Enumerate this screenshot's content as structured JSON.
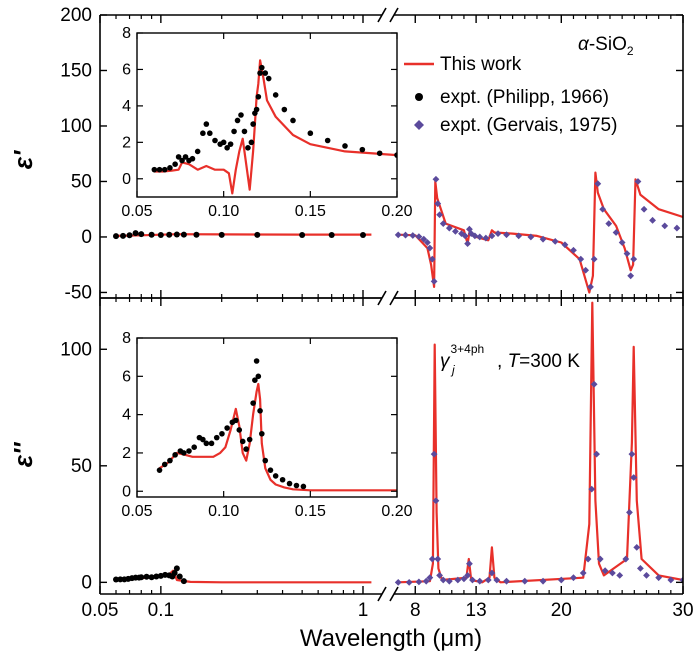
{
  "chart_data": {
    "type": "line",
    "xlabel": "Wavelength (μm)",
    "x_scale": "log (0.05–1.2 μm), then linear 6.5–30 μm after axis break",
    "legend": {
      "placement": "top-right",
      "entries": [
        "This work",
        "expt. (Philipp, 1966)",
        "expt. (Gervais, 1975)"
      ]
    },
    "colors": {
      "this_work": "#e8302a",
      "philipp": "#000000",
      "gervais": "#5b4a9c"
    },
    "annotation_material": "α-SiO",
    "annotation_material_sub": "2",
    "annotation_gamma": "γ",
    "annotation_gamma_sub": "j",
    "annotation_gamma_sup": "3+4ph",
    "annotation_gamma_rest": ", ",
    "annotation_T": "T",
    "annotation_T_val": "=300 K",
    "x_tick_labels": [
      "0.05",
      "0.1",
      "1",
      "8",
      "13",
      "20",
      "30"
    ],
    "panels": [
      {
        "name": "real",
        "ylabel": "ε'",
        "ylim": [
          -55,
          200
        ],
        "y_ticks": [
          -50,
          0,
          50,
          100,
          150,
          200
        ],
        "series": [
          {
            "name": "This work",
            "style": "line",
            "x": [
              0.06,
              0.08,
              0.1,
              0.12,
              0.2,
              0.5,
              1.1,
              6.6,
              8.0,
              9.0,
              9.3,
              9.55,
              9.65,
              9.8,
              10.5,
              12.0,
              12.3,
              12.45,
              12.55,
              13.0,
              14.0,
              14.3,
              14.5,
              16,
              18,
              20,
              21.5,
              22.3,
              22.6,
              22.8,
              23.0,
              23.5,
              24.5,
              25.2,
              25.7,
              25.9,
              26.1,
              26.5,
              28,
              30
            ],
            "y": [
              1,
              1.5,
              2,
              2.5,
              2.3,
              2.1,
              2.1,
              2.0,
              1.5,
              -10,
              -25,
              -45,
              50,
              35,
              12,
              6,
              -6,
              4,
              2,
              0,
              -3,
              6,
              4,
              3,
              1,
              -5,
              -20,
              -50,
              -35,
              58,
              40,
              25,
              10,
              -10,
              -30,
              -25,
              52,
              38,
              25,
              18
            ]
          },
          {
            "name": "expt. (Philipp, 1966)",
            "style": "dots",
            "x": [
              0.06,
              0.065,
              0.07,
              0.075,
              0.08,
              0.09,
              0.1,
              0.11,
              0.12,
              0.13,
              0.15,
              0.2,
              0.3,
              0.5,
              0.7,
              1.0
            ],
            "y": [
              0.8,
              1.0,
              1.5,
              3.5,
              2.5,
              2.0,
              1.8,
              2.0,
              2.2,
              2.1,
              2.0,
              1.9,
              1.9,
              1.8,
              1.8,
              1.8
            ]
          },
          {
            "name": "expt. (Gervais, 1975)",
            "style": "diamonds",
            "x": [
              6.6,
              7.2,
              7.8,
              8.3,
              8.7,
              9.0,
              9.2,
              9.4,
              9.55,
              9.7,
              9.85,
              10.0,
              10.3,
              10.8,
              11.3,
              11.8,
              12.1,
              12.3,
              12.45,
              12.6,
              12.9,
              13.3,
              13.8,
              14.3,
              14.8,
              15.5,
              16.5,
              17.5,
              18.5,
              19.5,
              20.3,
              21.0,
              21.6,
              22.0,
              22.4,
              22.7,
              23.0,
              23.4,
              23.9,
              24.5,
              25.0,
              25.4,
              25.7,
              25.95,
              26.3,
              26.8,
              27.5,
              28.5,
              29.5
            ],
            "y": [
              1.9,
              1.7,
              1.3,
              0.3,
              -2,
              -5,
              -10,
              -20,
              -40,
              52,
              30,
              20,
              12,
              8,
              5,
              3,
              1,
              -6,
              7,
              3,
              1,
              0,
              -1,
              1,
              3,
              2,
              1,
              0,
              -2,
              -4,
              -7,
              -12,
              -20,
              -30,
              -45,
              -20,
              48,
              25,
              12,
              4,
              -5,
              -15,
              -35,
              -20,
              50,
              25,
              15,
              10,
              8
            ]
          }
        ],
        "inset": {
          "xlim": [
            0.05,
            0.2
          ],
          "ylim": [
            -1,
            8
          ],
          "x_ticks": [
            0.05,
            0.1,
            0.15,
            0.2
          ],
          "y_ticks": [
            0,
            2,
            4,
            6,
            8
          ],
          "series": [
            {
              "name": "This work",
              "style": "line",
              "x": [
                0.06,
                0.065,
                0.07,
                0.074,
                0.076,
                0.08,
                0.085,
                0.09,
                0.095,
                0.1,
                0.103,
                0.105,
                0.107,
                0.109,
                0.111,
                0.113,
                0.115,
                0.117,
                0.118,
                0.119,
                0.12,
                0.121,
                0.123,
                0.125,
                0.13,
                0.14,
                0.15,
                0.17,
                0.2
              ],
              "y": [
                0.4,
                0.4,
                0.45,
                0.5,
                0.9,
                0.8,
                0.5,
                0.7,
                0.5,
                0.5,
                0.3,
                -0.8,
                0.5,
                1.5,
                2.2,
                0.8,
                -0.6,
                1.5,
                3,
                4.5,
                5.2,
                6.5,
                5.5,
                4.3,
                3.4,
                2.4,
                1.9,
                1.5,
                1.3
              ]
            },
            {
              "name": "expt. (Philipp, 1966)",
              "style": "dots",
              "x": [
                0.06,
                0.063,
                0.066,
                0.069,
                0.072,
                0.074,
                0.076,
                0.078,
                0.08,
                0.082,
                0.085,
                0.088,
                0.09,
                0.092,
                0.095,
                0.098,
                0.1,
                0.102,
                0.104,
                0.106,
                0.108,
                0.11,
                0.112,
                0.114,
                0.116,
                0.117,
                0.118,
                0.119,
                0.12,
                0.121,
                0.122,
                0.124,
                0.126,
                0.13,
                0.135,
                0.14,
                0.15,
                0.16,
                0.17,
                0.18,
                0.19,
                0.2
              ],
              "y": [
                0.5,
                0.5,
                0.5,
                0.6,
                0.8,
                1.2,
                1.0,
                1.2,
                1.0,
                1.1,
                1.5,
                2.5,
                3.0,
                2.5,
                2.1,
                1.9,
                2.0,
                1.7,
                1.9,
                2.6,
                3.2,
                3.5,
                2.6,
                1.7,
                2.0,
                3.0,
                3.6,
                3.8,
                4.5,
                5.8,
                6.1,
                5.8,
                5.5,
                4.6,
                3.8,
                3.2,
                2.5,
                2.1,
                1.8,
                1.6,
                1.4,
                1.3
              ]
            }
          ]
        }
      },
      {
        "name": "imaginary",
        "ylabel": "ε''",
        "ylim": [
          -5,
          122
        ],
        "y_ticks": [
          0,
          50,
          100
        ],
        "series": [
          {
            "name": "This work",
            "style": "line",
            "x": [
              0.06,
              0.08,
              0.1,
              0.11,
              0.115,
              0.12,
              0.14,
              0.2,
              1.1,
              6.6,
              9.2,
              9.45,
              9.6,
              9.75,
              9.9,
              10.2,
              12.2,
              12.4,
              12.6,
              13.5,
              14.1,
              14.3,
              14.5,
              15,
              21.8,
              22.3,
              22.55,
              22.8,
              23.1,
              23.5,
              25.4,
              25.8,
              25.95,
              26.2,
              26.6,
              28,
              30
            ],
            "y": [
              1.2,
              1.8,
              2.5,
              3.5,
              5,
              1,
              0.2,
              0,
              0,
              0,
              0.5,
              8,
              102,
              30,
              6,
              1,
              2,
              10,
              1,
              0,
              2,
              15,
              2,
              0,
              2,
              25,
              120,
              35,
              8,
              3,
              10,
              60,
              101,
              35,
              10,
              3,
              1
            ]
          },
          {
            "name": "expt. (Philipp, 1966)",
            "style": "dots",
            "x": [
              0.06,
              0.063,
              0.066,
              0.069,
              0.072,
              0.075,
              0.078,
              0.08,
              0.085,
              0.09,
              0.095,
              0.1,
              0.105,
              0.11,
              0.114,
              0.117,
              0.12,
              0.124,
              0.13
            ],
            "y": [
              1.2,
              1.3,
              1.3,
              1.5,
              1.8,
              2.0,
              2.0,
              2.2,
              2.4,
              2.2,
              2.5,
              2.8,
              3.2,
              3.0,
              2.5,
              4.0,
              6.0,
              2.5,
              0.5
            ]
          },
          {
            "name": "expt. (Gervais, 1975)",
            "style": "diamonds",
            "x": [
              6.6,
              7.5,
              8.3,
              8.9,
              9.2,
              9.4,
              9.55,
              9.7,
              9.85,
              10.0,
              10.3,
              10.8,
              11.5,
              12.0,
              12.3,
              12.45,
              12.7,
              13.3,
              14.0,
              14.3,
              14.7,
              15.5,
              17,
              18.5,
              20,
              21,
              21.8,
              22.2,
              22.5,
              22.7,
              22.9,
              23.2,
              23.6,
              24.2,
              24.8,
              25.3,
              25.6,
              25.8,
              25.95,
              26.2,
              26.5,
              27,
              28,
              29,
              30
            ],
            "y": [
              0,
              0,
              0.2,
              0.5,
              2,
              10,
              55,
              35,
              10,
              3,
              1,
              0.5,
              1,
              1.5,
              3,
              8,
              1,
              0.5,
              1,
              4,
              1,
              0.5,
              0.5,
              0.5,
              1,
              2,
              4,
              10,
              40,
              85,
              55,
              10,
              5,
              4,
              3,
              10,
              30,
              55,
              45,
              15,
              6,
              3,
              2,
              1,
              1
            ]
          }
        ],
        "inset": {
          "xlim": [
            0.05,
            0.2
          ],
          "ylim": [
            -0.3,
            8
          ],
          "x_ticks": [
            0.05,
            0.1,
            0.15,
            0.2
          ],
          "y_ticks": [
            0,
            2,
            4,
            6,
            8
          ],
          "series": [
            {
              "name": "This work",
              "style": "line",
              "x": [
                0.063,
                0.068,
                0.073,
                0.078,
                0.082,
                0.086,
                0.09,
                0.094,
                0.098,
                0.101,
                0.104,
                0.107,
                0.109,
                0.111,
                0.113,
                0.115,
                0.117,
                0.119,
                0.12,
                0.121,
                0.122,
                0.124,
                0.127,
                0.13,
                0.135,
                0.14,
                0.15,
                0.2
              ],
              "y": [
                1.2,
                1.5,
                2.0,
                1.9,
                1.8,
                1.8,
                1.8,
                1.8,
                2.0,
                2.3,
                3.2,
                4.3,
                3.4,
                2.0,
                1.6,
                2.5,
                4.0,
                5.2,
                5.6,
                4.8,
                2.5,
                1.2,
                0.6,
                0.35,
                0.2,
                0.1,
                0.05,
                0.05
              ]
            },
            {
              "name": "expt. (Philipp, 1966)",
              "style": "dots",
              "x": [
                0.063,
                0.066,
                0.069,
                0.072,
                0.075,
                0.077,
                0.08,
                0.083,
                0.086,
                0.088,
                0.09,
                0.093,
                0.096,
                0.099,
                0.102,
                0.105,
                0.107,
                0.109,
                0.111,
                0.113,
                0.115,
                0.117,
                0.118,
                0.119,
                0.12,
                0.121,
                0.122,
                0.124,
                0.127,
                0.13,
                0.134,
                0.138,
                0.142,
                0.146
              ],
              "y": [
                1.1,
                1.4,
                1.6,
                1.9,
                2.1,
                2.0,
                2.1,
                2.3,
                2.8,
                2.7,
                2.5,
                2.5,
                2.8,
                3.0,
                3.3,
                3.6,
                3.7,
                3.2,
                2.6,
                2.2,
                2.7,
                4.6,
                5.8,
                6.8,
                6.0,
                4.2,
                3.0,
                1.6,
                1.1,
                0.8,
                0.6,
                0.4,
                0.3,
                0.25
              ]
            }
          ]
        }
      }
    ]
  }
}
